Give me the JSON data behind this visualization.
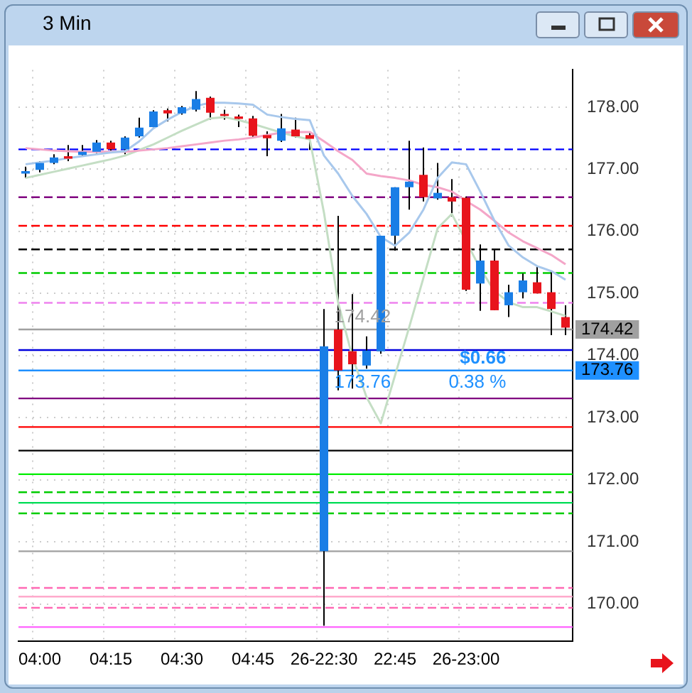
{
  "chart_data": {
    "type": "candlestick",
    "title": "3 Min",
    "categories": [
      null,
      "04:00",
      null,
      null,
      null,
      null,
      "04:15",
      null,
      null,
      null,
      null,
      "04:30",
      null,
      null,
      null,
      null,
      "04:45",
      null,
      null,
      null,
      null,
      "26-22:30",
      null,
      null,
      null,
      null,
      "22:45",
      null,
      null,
      null,
      null,
      "26-23:00",
      null,
      null,
      null,
      null,
      null,
      null,
      null
    ],
    "ohlc": [
      [
        176.93,
        177.04,
        176.86,
        176.97
      ],
      [
        176.99,
        177.13,
        176.95,
        177.1
      ],
      [
        177.1,
        177.24,
        177.08,
        177.19
      ],
      [
        177.21,
        177.39,
        177.13,
        177.17
      ],
      [
        177.23,
        177.39,
        177.2,
        177.28
      ],
      [
        177.28,
        177.47,
        177.26,
        177.43
      ],
      [
        177.43,
        177.46,
        177.3,
        177.32
      ],
      [
        177.32,
        177.53,
        177.24,
        177.51
      ],
      [
        177.53,
        177.83,
        177.51,
        177.67
      ],
      [
        177.68,
        177.95,
        177.66,
        177.93
      ],
      [
        177.95,
        177.98,
        177.77,
        177.9
      ],
      [
        177.9,
        178.02,
        177.88,
        178.0
      ],
      [
        177.96,
        178.26,
        177.93,
        178.13
      ],
      [
        178.15,
        178.17,
        177.8,
        177.91
      ],
      [
        177.89,
        177.96,
        177.8,
        177.86
      ],
      [
        177.85,
        177.88,
        177.68,
        177.81
      ],
      [
        177.82,
        177.86,
        177.51,
        177.54
      ],
      [
        177.55,
        177.61,
        177.21,
        177.5
      ],
      [
        177.46,
        177.89,
        177.44,
        177.66
      ],
      [
        177.64,
        177.83,
        177.51,
        177.53
      ],
      [
        177.55,
        177.59,
        177.31,
        177.49
      ],
      [
        170.85,
        174.75,
        169.65,
        174.15
      ],
      [
        174.42,
        176.25,
        173.44,
        173.76
      ],
      [
        174.07,
        174.99,
        173.47,
        173.86
      ],
      [
        173.84,
        174.31,
        173.79,
        174.08
      ],
      [
        174.07,
        175.93,
        174.03,
        175.93
      ],
      [
        175.93,
        176.71,
        175.69,
        176.71
      ],
      [
        176.71,
        177.46,
        176.35,
        176.8
      ],
      [
        176.91,
        177.35,
        176.48,
        176.55
      ],
      [
        176.53,
        177.1,
        176.51,
        176.62
      ],
      [
        176.55,
        176.84,
        176.24,
        176.48
      ],
      [
        176.54,
        176.56,
        175.04,
        175.06
      ],
      [
        175.16,
        175.79,
        174.72,
        175.53
      ],
      [
        175.53,
        175.72,
        174.73,
        174.73
      ],
      [
        174.81,
        175.14,
        174.62,
        175.02
      ],
      [
        175.02,
        175.32,
        174.92,
        175.21
      ],
      [
        175.18,
        175.44,
        175.0,
        175.0
      ],
      [
        175.02,
        175.35,
        174.33,
        174.75
      ],
      [
        174.62,
        174.81,
        174.33,
        174.45
      ]
    ],
    "colors": [
      "#1a7ee6",
      "#1a7ee6",
      "#1a7ee6",
      "#e8141c",
      "#1a7ee6",
      "#1a7ee6",
      "#e8141c",
      "#1a7ee6",
      "#1a7ee6",
      "#1a7ee6",
      "#e8141c",
      "#1a7ee6",
      "#1a7ee6",
      "#e8141c",
      "#e8141c",
      "#e8141c",
      "#e8141c",
      "#e8141c",
      "#1a7ee6",
      "#e8141c",
      "#e8141c",
      "#1a7ee6",
      "#e8141c",
      "#e8141c",
      "#1a7ee6",
      "#1a7ee6",
      "#1a7ee6",
      "#1a7ee6",
      "#e8141c",
      "#1a7ee6",
      "#e8141c",
      "#e8141c",
      "#1a7ee6",
      "#e8141c",
      "#1a7ee6",
      "#1a7ee6",
      "#e8141c",
      "#e8141c",
      "#e8141c"
    ],
    "series": [
      {
        "type": "line",
        "color": "#a8c8ec",
        "values": [
          177.08,
          177.11,
          177.14,
          177.18,
          177.21,
          177.24,
          177.27,
          177.29,
          177.45,
          177.66,
          177.8,
          177.92,
          178.02,
          178.07,
          178.07,
          178.06,
          178.04,
          177.88,
          177.84,
          177.81,
          177.79,
          177.22,
          176.93,
          176.57,
          176.28,
          175.91,
          175.77,
          175.98,
          176.35,
          176.86,
          177.11,
          177.08,
          176.64,
          176.17,
          175.77,
          175.58,
          175.44,
          175.36,
          175.22
        ]
      },
      {
        "type": "line",
        "color": "#f4a6c8",
        "values": [
          177.34,
          177.32,
          177.3,
          177.29,
          177.28,
          177.28,
          177.28,
          177.28,
          177.3,
          177.32,
          177.34,
          177.37,
          177.4,
          177.43,
          177.46,
          177.48,
          177.51,
          177.55,
          177.59,
          177.6,
          177.6,
          177.45,
          177.29,
          177.15,
          176.93,
          176.89,
          176.86,
          176.82,
          176.75,
          176.71,
          176.64,
          176.49,
          176.35,
          176.17,
          175.98,
          175.84,
          175.73,
          175.62,
          175.47
        ]
      },
      {
        "type": "line",
        "color": "#c4dec4",
        "values": [
          176.86,
          176.91,
          176.96,
          177.01,
          177.06,
          177.11,
          177.16,
          177.22,
          177.31,
          177.4,
          177.51,
          177.62,
          177.72,
          177.82,
          177.84,
          177.79,
          177.73,
          177.66,
          177.59,
          177.53,
          177.48,
          176.3,
          174.85,
          173.98,
          173.33,
          172.91,
          173.68,
          174.46,
          175.25,
          176.05,
          176.28,
          null,
          175.4,
          175.04,
          174.86,
          174.78,
          174.78,
          174.71,
          174.64
        ]
      }
    ],
    "ylim": [
      169.4,
      178.6
    ],
    "yticks": [
      {
        "value": 170,
        "label": "170.00"
      },
      {
        "value": 171,
        "label": "171.00"
      },
      {
        "value": 172,
        "label": "172.00"
      },
      {
        "value": 173,
        "label": "173.00"
      },
      {
        "value": 174,
        "label": "174.00"
      },
      {
        "value": 175,
        "label": "175.00"
      },
      {
        "value": 176,
        "label": "176.00"
      },
      {
        "value": 177,
        "label": "177.00"
      },
      {
        "value": 178,
        "label": "178.00"
      }
    ],
    "grid": true,
    "legend": false,
    "ref_lines": [
      {
        "axis": "y",
        "value": 177.32,
        "color": "#0000ff",
        "line_style": "dashed"
      },
      {
        "axis": "y",
        "value": 176.55,
        "color": "#800080",
        "line_style": "dashed"
      },
      {
        "axis": "y",
        "value": 176.09,
        "color": "#ff0000",
        "line_style": "dashed"
      },
      {
        "axis": "y",
        "value": 175.71,
        "color": "#000000",
        "line_style": "dashed"
      },
      {
        "axis": "y",
        "value": 175.33,
        "color": "#00cc00",
        "line_style": "dashed"
      },
      {
        "axis": "y",
        "value": 174.85,
        "color": "#ee82ee",
        "line_style": "dashed"
      },
      {
        "axis": "y",
        "value": 174.42,
        "color": "#a0a0a0",
        "line_style": "solid",
        "label": "174.42"
      },
      {
        "axis": "y",
        "value": 174.09,
        "color": "#0000dd",
        "line_style": "solid"
      },
      {
        "axis": "y",
        "value": 173.76,
        "color": "#1e90ff",
        "line_style": "solid",
        "label": "173.76"
      },
      {
        "axis": "y",
        "value": 173.31,
        "color": "#800080",
        "line_style": "solid"
      },
      {
        "axis": "y",
        "value": 172.85,
        "color": "#ff0000",
        "line_style": "solid"
      },
      {
        "axis": "y",
        "value": 172.47,
        "color": "#000000",
        "line_style": "solid"
      },
      {
        "axis": "y",
        "value": 172.09,
        "color": "#00ee00",
        "line_style": "solid"
      },
      {
        "axis": "y",
        "value": 171.8,
        "color": "#00cc00",
        "line_style": "dashed"
      },
      {
        "axis": "y",
        "value": 171.63,
        "color": "#00dd55",
        "line_style": "solid"
      },
      {
        "axis": "y",
        "value": 171.46,
        "color": "#00cc00",
        "line_style": "dashed"
      },
      {
        "axis": "y",
        "value": 170.85,
        "color": "#a0a0a0",
        "line_style": "solid"
      },
      {
        "axis": "y",
        "value": 170.26,
        "color": "#ff69b4",
        "line_style": "dashed"
      },
      {
        "axis": "y",
        "value": 170.12,
        "color": "#ffaacc",
        "line_style": "solid"
      },
      {
        "axis": "y",
        "value": 169.94,
        "color": "#ff69b4",
        "line_style": "dashed"
      },
      {
        "axis": "y",
        "value": 169.63,
        "color": "#ff66ff",
        "line_style": "solid"
      }
    ],
    "annotations": [
      {
        "text": "174.42",
        "y": 174.42
      },
      {
        "text": "173.76",
        "y": 173.76
      },
      {
        "text": "$0.66",
        "y": 173.76
      },
      {
        "text": "0.38 %",
        "y": 173.76
      }
    ]
  }
}
